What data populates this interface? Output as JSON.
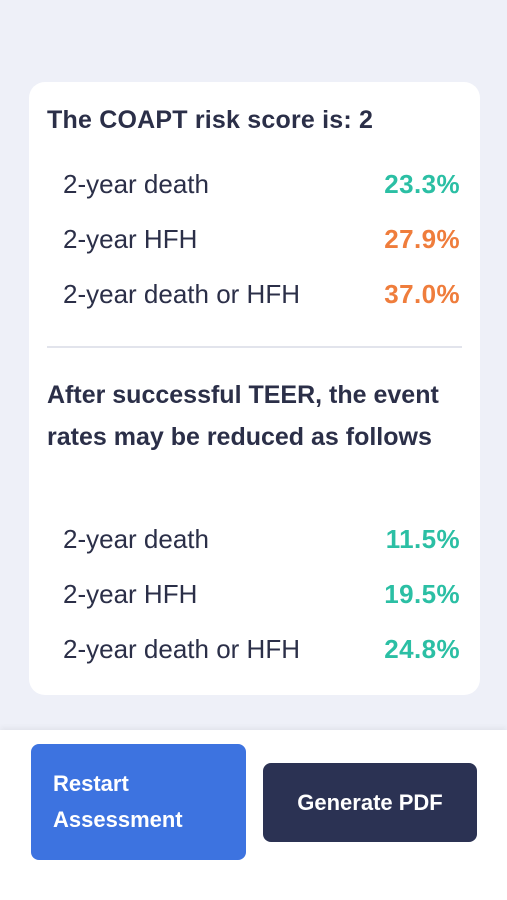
{
  "results": {
    "score_title": "The COAPT risk score is: 2",
    "baseline": [
      {
        "label": "2-year death",
        "value": "23.3%",
        "color": "#2bbfa4"
      },
      {
        "label": "2-year HFH",
        "value": "27.9%",
        "color": "#ef7d3c"
      },
      {
        "label": "2-year death or HFH",
        "value": "37.0%",
        "color": "#ef7d3c"
      }
    ],
    "teer_note": "After successful TEER, the event rates may be reduced as follows",
    "after_teer": [
      {
        "label": "2-year death",
        "value": "11.5%",
        "color": "#2bbfa4"
      },
      {
        "label": "2-year HFH",
        "value": "19.5%",
        "color": "#2bbfa4"
      },
      {
        "label": "2-year death or HFH",
        "value": "24.8%",
        "color": "#2bbfa4"
      }
    ]
  },
  "actions": {
    "restart_line1": "Restart",
    "restart_line2": "Assessment",
    "generate_pdf": "Generate PDF"
  },
  "colors": {
    "accent_blue": "#3d73e0",
    "dark_navy": "#2b3253",
    "good": "#2bbfa4",
    "warn": "#ef7d3c"
  }
}
